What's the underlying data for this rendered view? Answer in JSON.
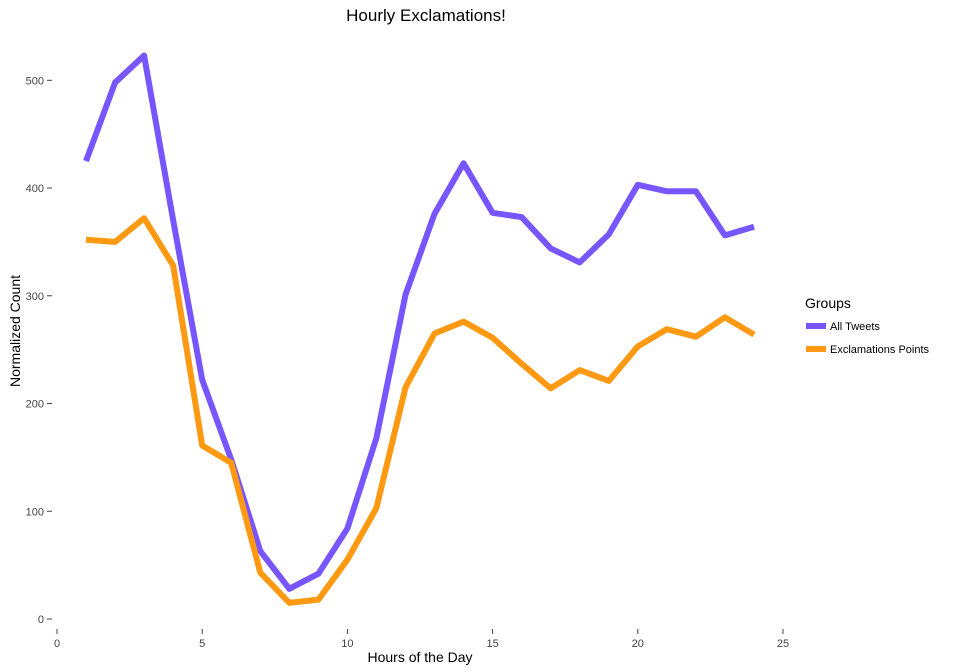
{
  "chart_data": {
    "type": "line",
    "title": "Hourly Exclamations!",
    "xlabel": "Hours of the Day",
    "ylabel": "Normalized Count",
    "xlim": [
      0,
      25
    ],
    "ylim": [
      0,
      540
    ],
    "xticks": [
      0,
      5,
      10,
      15,
      20,
      25
    ],
    "yticks": [
      0,
      100,
      200,
      300,
      400,
      500
    ],
    "grid": false,
    "legend": {
      "title": "Groups",
      "position": "right"
    },
    "series": [
      {
        "name": "All Tweets",
        "color": "#7755ff",
        "x": [
          1,
          2,
          3,
          4,
          5,
          6,
          7,
          8,
          9,
          10,
          11,
          12,
          13,
          14,
          15,
          16,
          17,
          18,
          19,
          20,
          21,
          22,
          23,
          24
        ],
        "values": [
          425,
          498,
          523,
          370,
          222,
          148,
          63,
          28,
          42,
          84,
          168,
          301,
          376,
          423,
          377,
          373,
          344,
          331,
          357,
          403,
          397,
          397,
          356,
          364
        ]
      },
      {
        "name": "Exclamations Points",
        "color": "#ff9911",
        "x": [
          1,
          2,
          3,
          4,
          5,
          6,
          7,
          8,
          9,
          10,
          11,
          12,
          13,
          14,
          15,
          16,
          17,
          18,
          19,
          20,
          21,
          22,
          23,
          24
        ],
        "values": [
          352,
          350,
          372,
          328,
          161,
          145,
          43,
          15,
          18,
          55,
          103,
          215,
          265,
          276,
          261,
          237,
          214,
          231,
          221,
          253,
          269,
          262,
          280,
          264
        ]
      }
    ]
  }
}
